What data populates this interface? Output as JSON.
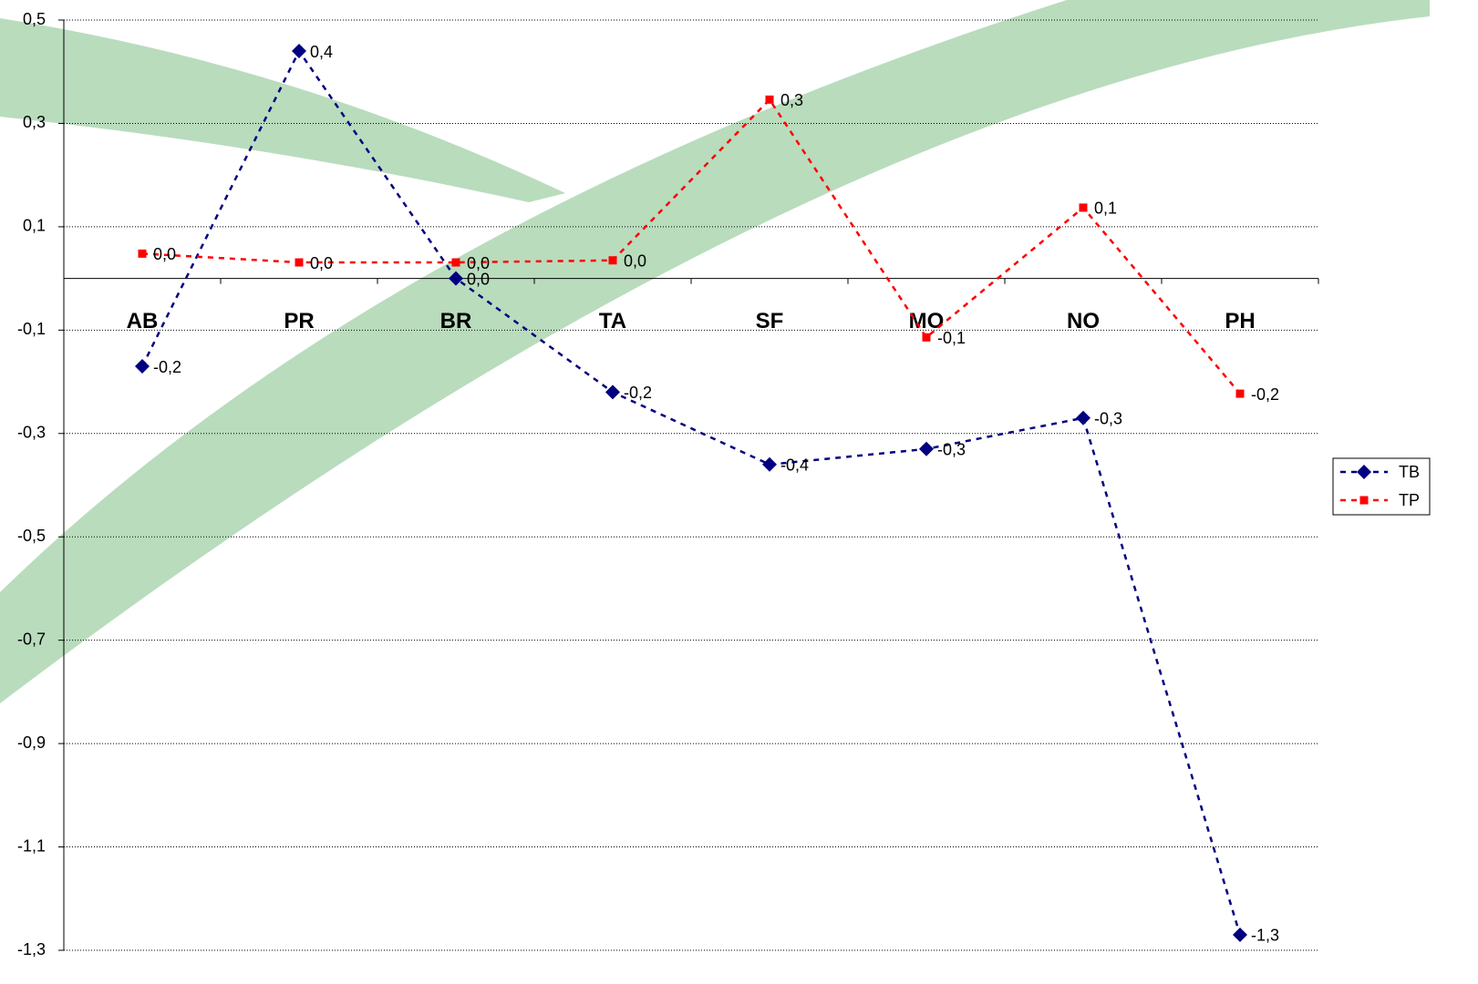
{
  "chart_data": {
    "type": "line",
    "categories": [
      "AB",
      "PR",
      "BR",
      "TA",
      "SF",
      "MO",
      "NO",
      "PH"
    ],
    "series": [
      {
        "name": "TB",
        "color": "#000080",
        "marker": "diamond",
        "values": [
          -0.17,
          0.44,
          0.0,
          -0.22,
          -0.36,
          -0.33,
          -0.27,
          -1.27
        ],
        "value_labels": [
          "-0,2",
          "0,4",
          "0,0",
          "-0,2",
          "-0,4",
          "-0,3",
          "-0,3",
          "-1,3"
        ]
      },
      {
        "name": "TP",
        "color": "#ff0000",
        "marker": "square",
        "values": [
          0.048,
          0.031,
          0.031,
          0.035,
          0.346,
          -0.114,
          0.137,
          -0.223
        ],
        "value_labels": [
          "0,0",
          "0,0",
          "0,0",
          "0,0",
          "0,3",
          "-0,1",
          "0,1",
          "-0,2"
        ]
      }
    ],
    "ylim": [
      -1.3,
      0.5
    ],
    "yticks": [
      {
        "value": 0.5,
        "label": "0,5"
      },
      {
        "value": 0.3,
        "label": "0,3"
      },
      {
        "value": 0.1,
        "label": "0,1"
      },
      {
        "value": -0.1,
        "label": "-0,1"
      },
      {
        "value": -0.3,
        "label": "-0,3"
      },
      {
        "value": -0.5,
        "label": "-0,5"
      },
      {
        "value": -0.7,
        "label": "-0,7"
      },
      {
        "value": -0.9,
        "label": "-0,9"
      },
      {
        "value": -1.1,
        "label": "-1,1"
      },
      {
        "value": -1.3,
        "label": "-1,3"
      }
    ],
    "grid": true,
    "legend": "right"
  }
}
